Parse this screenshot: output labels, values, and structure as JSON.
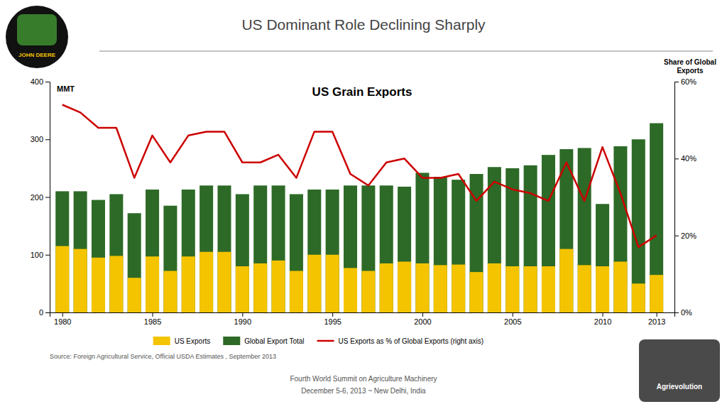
{
  "chart_data": {
    "type": "bar",
    "title": "US Dominant Role Declining Sharply",
    "subtitle": "US Grain Exports",
    "ylabel": "MMT",
    "y2label": "Share of Global\nExports",
    "annotations": [
      "Source: Foreign Agricultural Service, Official USDA Estimates , September 2013",
      "Fourth World Summit on Agriculture Machinery",
      "December 5-6, 2013 ~ New Delhi, India",
      "JOHN DEERE",
      "Agrievolution"
    ],
    "x": [
      1980,
      1981,
      1982,
      1983,
      1984,
      1985,
      1986,
      1987,
      1988,
      1989,
      1990,
      1991,
      1992,
      1993,
      1994,
      1995,
      1996,
      1997,
      1998,
      1999,
      2000,
      2001,
      2002,
      2003,
      2004,
      2005,
      2006,
      2007,
      2008,
      2009,
      2010,
      2011,
      2012,
      2013
    ],
    "series": [
      {
        "name": "US Exports",
        "type": "bar",
        "color": "#F5C400",
        "values": [
          115,
          110,
          95,
          98,
          60,
          97,
          72,
          97,
          105,
          105,
          80,
          85,
          90,
          72,
          100,
          100,
          77,
          72,
          85,
          88,
          85,
          82,
          83,
          70,
          85,
          80,
          80,
          80,
          110,
          82,
          80,
          88,
          50,
          65
        ]
      },
      {
        "name": "Global Export Total",
        "type": "bar",
        "color": "#2D6A27",
        "values": [
          210,
          210,
          195,
          205,
          172,
          213,
          185,
          213,
          220,
          220,
          205,
          220,
          220,
          205,
          213,
          213,
          220,
          220,
          220,
          218,
          242,
          235,
          230,
          240,
          252,
          250,
          255,
          273,
          283,
          285,
          188,
          288,
          300,
          328
        ]
      },
      {
        "name": "US Exports as % of Global Exports (right axis)",
        "type": "line",
        "axis": "y2",
        "color": "#CC0000",
        "values": [
          0.54,
          0.52,
          0.48,
          0.48,
          0.35,
          0.46,
          0.39,
          0.46,
          0.47,
          0.47,
          0.39,
          0.39,
          0.41,
          0.35,
          0.47,
          0.47,
          0.36,
          0.33,
          0.39,
          0.4,
          0.35,
          0.35,
          0.36,
          0.29,
          0.34,
          0.32,
          0.31,
          0.29,
          0.39,
          0.29,
          0.43,
          0.31,
          0.17,
          0.2
        ]
      }
    ],
    "xlim": [
      1979.3,
      2014
    ],
    "xticks": [
      1980,
      1985,
      1990,
      1995,
      2000,
      2005,
      2010,
      2013
    ],
    "ylim": [
      0,
      400
    ],
    "yticks": [
      0,
      100,
      200,
      300,
      400
    ],
    "y2lim": [
      0,
      0.6
    ],
    "y2ticks": [
      {
        "value": 0,
        "label": "0%"
      },
      {
        "value": 0.2,
        "label": "20%"
      },
      {
        "value": 0.4,
        "label": "40%"
      },
      {
        "value": 0.6,
        "label": "60%"
      }
    ],
    "grid": false,
    "legend": "bottom",
    "stacked": false
  }
}
